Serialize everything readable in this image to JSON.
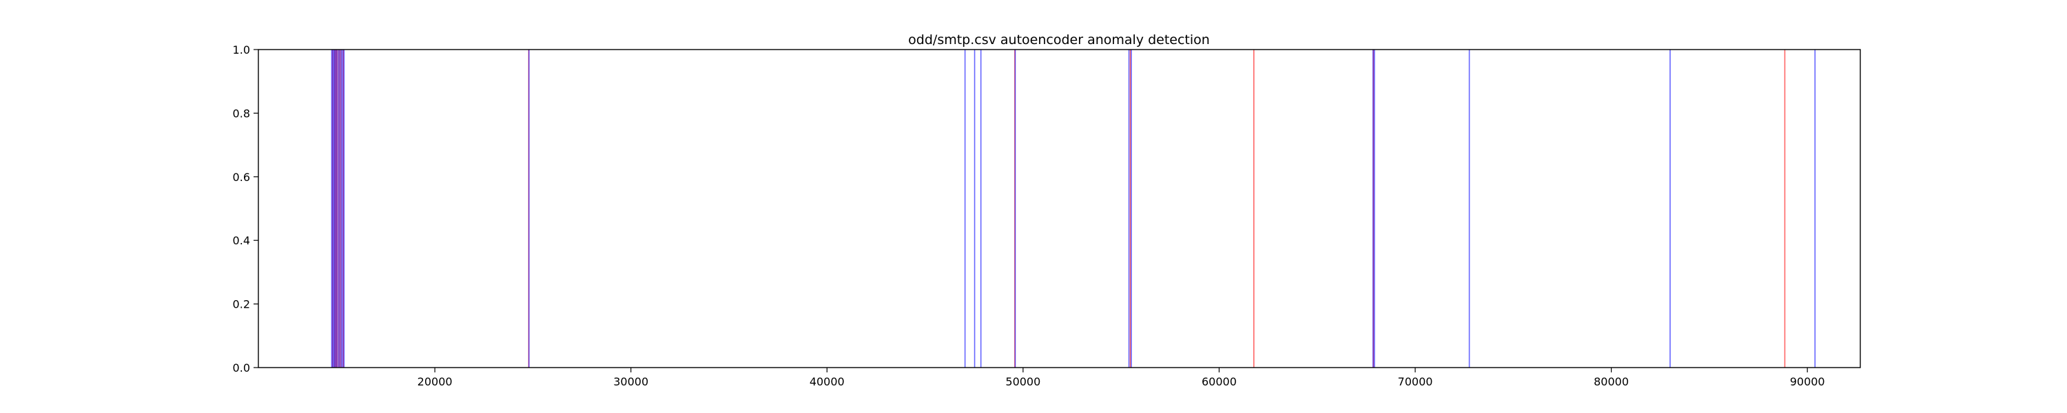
{
  "chart_data": {
    "type": "line",
    "title": "odd/smtp.csv autoencoder anomaly detection",
    "xlabel": "",
    "ylabel": "",
    "xlim": [
      11000,
      92700
    ],
    "ylim": [
      0.0,
      1.0
    ],
    "x_ticks": [
      20000,
      30000,
      40000,
      50000,
      60000,
      70000,
      80000,
      90000
    ],
    "y_ticks": [
      0.0,
      0.2,
      0.4,
      0.6,
      0.8,
      1.0
    ],
    "x_tick_labels": [
      "20000",
      "30000",
      "40000",
      "50000",
      "60000",
      "70000",
      "80000",
      "90000"
    ],
    "y_tick_labels": [
      "0.0",
      "0.2",
      "0.4",
      "0.6",
      "0.8",
      "1.0"
    ],
    "grid": false,
    "colors": {
      "true_anomaly": "#ff0000",
      "predicted_anomaly": "#0000ff",
      "overlap": "#7f00ff"
    },
    "series": [
      {
        "color": "#ff0000",
        "x": [
          14780,
          14880,
          14950,
          15010,
          15120,
          15210,
          15330,
          24790,
          49580,
          55470,
          61770,
          67870,
          88850
        ]
      },
      {
        "color": "#0000ff",
        "x": [
          14740,
          14800,
          14860,
          14920,
          14990,
          15070,
          15150,
          15230,
          15300,
          15370,
          24800,
          47040,
          47530,
          47850,
          49600,
          55400,
          55520,
          67850,
          67920,
          72760,
          83000,
          90390
        ]
      }
    ]
  }
}
